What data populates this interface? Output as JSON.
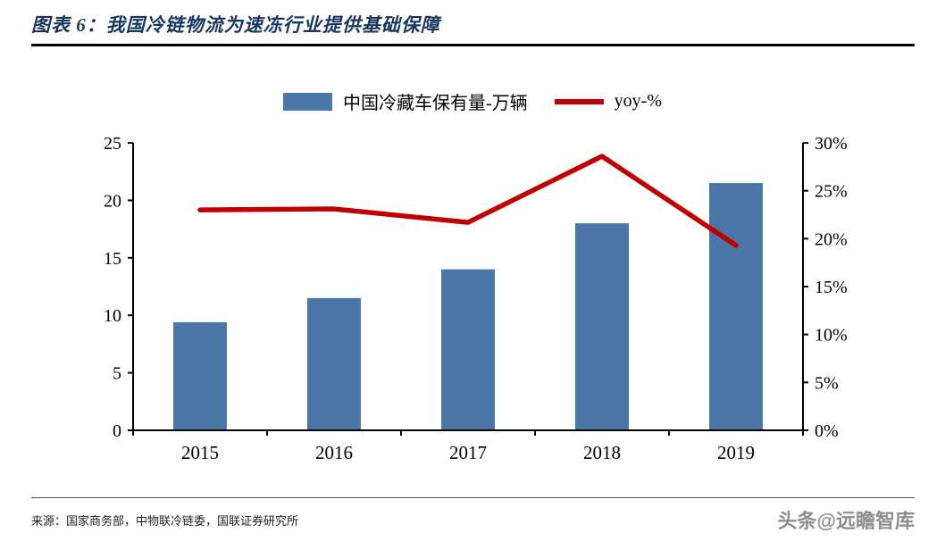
{
  "header": {
    "title": "图表 6：我国冷链物流为速冻行业提供基础保障"
  },
  "chart_data": {
    "type": "combo",
    "categories": [
      "2015",
      "2016",
      "2017",
      "2018",
      "2019"
    ],
    "series": [
      {
        "name": "中国冷藏车保有量-万辆",
        "type": "bar",
        "axis": "left",
        "color": "#4A76A8",
        "values": [
          9.4,
          11.5,
          14.0,
          18.0,
          21.5
        ]
      },
      {
        "name": "yoy-%",
        "type": "line",
        "axis": "right",
        "color": "#C00000",
        "values": [
          23.0,
          23.1,
          21.7,
          28.6,
          19.3
        ]
      }
    ],
    "left_axis": {
      "min": 0,
      "max": 25,
      "step": 5,
      "ticks": [
        "0",
        "5",
        "10",
        "15",
        "20",
        "25"
      ]
    },
    "right_axis": {
      "min": 0,
      "max": 30,
      "step": 5,
      "ticks": [
        "0%",
        "5%",
        "10%",
        "15%",
        "20%",
        "25%",
        "30%"
      ]
    },
    "grid": false,
    "legend_position": "top",
    "title": "我国冷链物流为速冻行业提供基础保障",
    "xlabel": "",
    "ylabel_left": "中国冷藏车保有量-万辆",
    "ylabel_right": "yoy-%"
  },
  "footer": {
    "source": "来源：国家商务部，中物联冷链委，国联证券研究所",
    "watermark": "头条@远瞻智库"
  }
}
